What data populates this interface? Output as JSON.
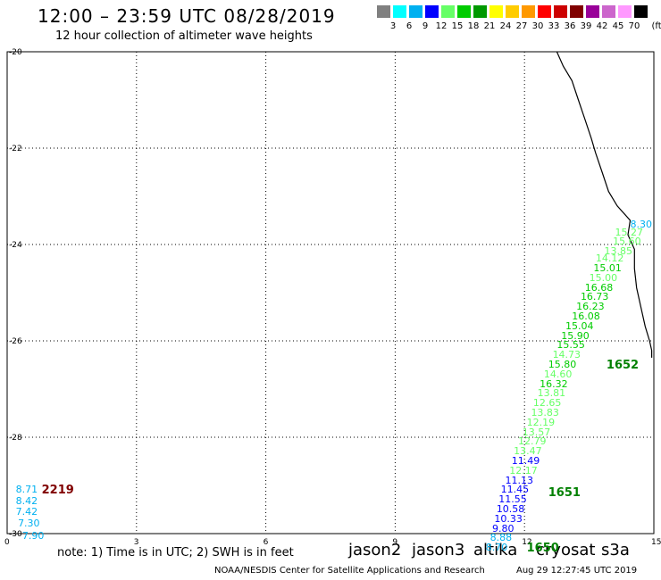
{
  "header": {
    "title": "12:00 – 23:59 UTC 08/28/2019",
    "subtitle": "12 hour collection of altimeter wave heights"
  },
  "color_scale": {
    "unit": "(ft)",
    "bins": [
      {
        "label": "3",
        "color": "#808080"
      },
      {
        "label": "6",
        "color": "#00ffff"
      },
      {
        "label": "9",
        "color": "#00b0f0"
      },
      {
        "label": "12",
        "color": "#0000ff"
      },
      {
        "label": "15",
        "color": "#66ff66"
      },
      {
        "label": "18",
        "color": "#00cc00"
      },
      {
        "label": "21",
        "color": "#009900"
      },
      {
        "label": "24",
        "color": "#ffff00"
      },
      {
        "label": "27",
        "color": "#ffcc00"
      },
      {
        "label": "30",
        "color": "#ff9900"
      },
      {
        "label": "33",
        "color": "#ff0000"
      },
      {
        "label": "36",
        "color": "#cc0000"
      },
      {
        "label": "39",
        "color": "#800000"
      },
      {
        "label": "42",
        "color": "#990099"
      },
      {
        "label": "45",
        "color": "#cc66cc"
      },
      {
        "label": "70",
        "color": "#ff99ff"
      },
      {
        "label": "",
        "color": "#000000"
      }
    ]
  },
  "axes": {
    "lat_labels": [
      "-20",
      "-22",
      "-24",
      "-26",
      "-28",
      "-30"
    ],
    "lon_labels": [
      "0",
      "3",
      "6",
      "9",
      "12",
      "15"
    ]
  },
  "coastline": [
    [
      12.75,
      -20.0
    ],
    [
      12.9,
      -20.3
    ],
    [
      13.1,
      -20.6
    ],
    [
      13.25,
      -21.0
    ],
    [
      13.4,
      -21.4
    ],
    [
      13.55,
      -21.8
    ],
    [
      13.65,
      -22.1
    ],
    [
      13.8,
      -22.5
    ],
    [
      13.95,
      -22.9
    ],
    [
      14.15,
      -23.2
    ],
    [
      14.45,
      -23.5
    ],
    [
      14.4,
      -23.8
    ],
    [
      14.55,
      -24.1
    ],
    [
      14.55,
      -24.5
    ],
    [
      14.6,
      -24.9
    ],
    [
      14.7,
      -25.3
    ],
    [
      14.8,
      -25.7
    ],
    [
      14.9,
      -26.0
    ],
    [
      14.95,
      -26.2
    ],
    [
      14.95,
      -26.35
    ]
  ],
  "observations": [
    {
      "lon": 14.45,
      "lat": -23.6,
      "v": "8.30",
      "c": "#00b0f0"
    },
    {
      "lon": 14.1,
      "lat": -23.75,
      "v": "15.27",
      "c": "#66ff66"
    },
    {
      "lon": 14.05,
      "lat": -23.95,
      "v": "15.60",
      "c": "#66ff66"
    },
    {
      "lon": 13.85,
      "lat": -24.15,
      "v": "13.85",
      "c": "#66ff66"
    },
    {
      "lon": 13.65,
      "lat": -24.3,
      "v": "14.12",
      "c": "#66ff66"
    },
    {
      "lon": 13.6,
      "lat": -24.5,
      "v": "15.01",
      "c": "#00cc00"
    },
    {
      "lon": 13.5,
      "lat": -24.7,
      "v": "15.00",
      "c": "#66ff66"
    },
    {
      "lon": 13.4,
      "lat": -24.9,
      "v": "16.68",
      "c": "#00cc00"
    },
    {
      "lon": 13.3,
      "lat": -25.1,
      "v": "16.73",
      "c": "#00cc00"
    },
    {
      "lon": 13.2,
      "lat": -25.3,
      "v": "16.23",
      "c": "#00cc00"
    },
    {
      "lon": 13.1,
      "lat": -25.5,
      "v": "16.08",
      "c": "#00cc00"
    },
    {
      "lon": 12.95,
      "lat": -25.7,
      "v": "15.04",
      "c": "#00cc00"
    },
    {
      "lon": 12.85,
      "lat": -25.9,
      "v": "15.90",
      "c": "#00cc00"
    },
    {
      "lon": 12.75,
      "lat": -26.1,
      "v": "15.55",
      "c": "#00cc00"
    },
    {
      "lon": 12.65,
      "lat": -26.3,
      "v": "14.73",
      "c": "#66ff66"
    },
    {
      "lon": 12.55,
      "lat": -26.5,
      "v": "15.80",
      "c": "#00cc00"
    },
    {
      "lon": 12.45,
      "lat": -26.7,
      "v": "14.60",
      "c": "#66ff66"
    },
    {
      "lon": 12.35,
      "lat": -26.9,
      "v": "16.32",
      "c": "#00cc00"
    },
    {
      "lon": 12.3,
      "lat": -27.1,
      "v": "13.81",
      "c": "#66ff66"
    },
    {
      "lon": 12.2,
      "lat": -27.3,
      "v": "12.65",
      "c": "#66ff66"
    },
    {
      "lon": 12.15,
      "lat": -27.5,
      "v": "13.83",
      "c": "#66ff66"
    },
    {
      "lon": 12.05,
      "lat": -27.7,
      "v": "12.19",
      "c": "#66ff66"
    },
    {
      "lon": 11.95,
      "lat": -27.9,
      "v": "13.57",
      "c": "#66ff66"
    },
    {
      "lon": 11.85,
      "lat": -28.1,
      "v": "12.79",
      "c": "#66ff66"
    },
    {
      "lon": 11.75,
      "lat": -28.3,
      "v": "13.47",
      "c": "#66ff66"
    },
    {
      "lon": 11.7,
      "lat": -28.5,
      "v": "11.49",
      "c": "#0000ff"
    },
    {
      "lon": 11.65,
      "lat": -28.7,
      "v": "12.17",
      "c": "#66ff66"
    },
    {
      "lon": 11.55,
      "lat": -28.9,
      "v": "11.13",
      "c": "#0000ff"
    },
    {
      "lon": 11.45,
      "lat": -29.1,
      "v": "11.45",
      "c": "#0000ff"
    },
    {
      "lon": 11.4,
      "lat": -29.3,
      "v": "11.55",
      "c": "#0000ff"
    },
    {
      "lon": 11.35,
      "lat": -29.5,
      "v": "10.58",
      "c": "#0000ff"
    },
    {
      "lon": 11.3,
      "lat": -29.7,
      "v": "10.33",
      "c": "#0000ff"
    },
    {
      "lon": 11.25,
      "lat": -29.9,
      "v": "9.80",
      "c": "#0000ff"
    },
    {
      "lon": 11.2,
      "lat": -30.1,
      "v": "8.88",
      "c": "#00b0f0"
    },
    {
      "lon": 11.1,
      "lat": -30.3,
      "v": "8.70",
      "c": "#00b0f0"
    },
    {
      "lon": 0.2,
      "lat": -29.1,
      "v": "8.71",
      "c": "#00b0f0"
    },
    {
      "lon": 0.2,
      "lat": -29.33,
      "v": "8.42",
      "c": "#00b0f0"
    },
    {
      "lon": 0.2,
      "lat": -29.56,
      "v": "7.42",
      "c": "#00b0f0"
    },
    {
      "lon": 0.25,
      "lat": -29.8,
      "v": "7.30",
      "c": "#00b0f0"
    },
    {
      "lon": 0.35,
      "lat": -30.05,
      "v": "7.90",
      "c": "#00b0f0"
    }
  ],
  "pass_labels": [
    {
      "lon": 13.9,
      "lat": -26.5,
      "text": "1652",
      "c": "#008000"
    },
    {
      "lon": 12.55,
      "lat": -29.15,
      "text": "1651",
      "c": "#008000"
    },
    {
      "lon": 12.05,
      "lat": -30.3,
      "text": "1650",
      "c": "#008000"
    },
    {
      "lon": 0.8,
      "lat": -29.1,
      "text": "2219",
      "c": "#800000"
    }
  ],
  "notes": {
    "note": "note: 1) Time is in UTC; 2) SWH is in feet",
    "satellites": [
      {
        "name": "jason2",
        "color": "#0000cc"
      },
      {
        "name": "jason3",
        "color": "#009900"
      },
      {
        "name": "altika",
        "color": "#ff9900"
      },
      {
        "name": "cryosat",
        "color": "#cc0000"
      },
      {
        "name": "s3a",
        "color": "#800000"
      }
    ],
    "footer": "NOAA/NESDIS Center for Satellite Applications and Research",
    "timestamp": "Aug 29 12:27:45 UTC 2019"
  }
}
